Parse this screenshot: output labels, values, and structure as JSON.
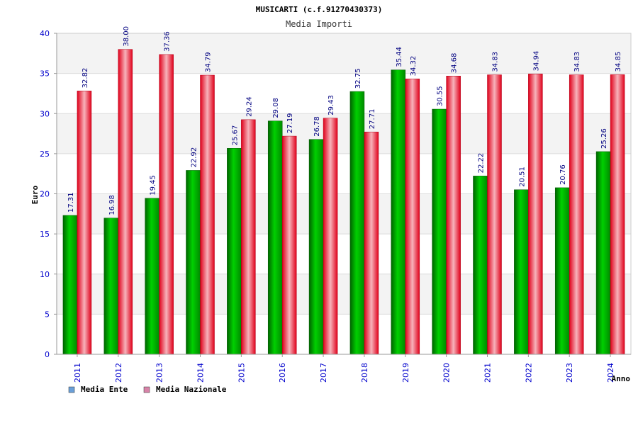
{
  "chart_data": {
    "type": "bar",
    "title": "MUSICARTI (c.f.91270430373)",
    "subtitle": "Media Importi",
    "xlabel": "Anno",
    "ylabel": "Euro",
    "ylim": [
      0,
      40
    ],
    "yticks": [
      "0",
      "5",
      "10",
      "15",
      "20",
      "25",
      "30",
      "35",
      "40"
    ],
    "grid": true,
    "legend_position": "bottom-left",
    "categories": [
      "2011",
      "2012",
      "2013",
      "2014",
      "2015",
      "2016",
      "2017",
      "2018",
      "2019",
      "2020",
      "2021",
      "2022",
      "2023",
      "2024"
    ],
    "series": [
      {
        "name": "Media Ente",
        "legend_color": "#6a9fd8",
        "bar_color": "#00c000",
        "values": [
          17.31,
          16.98,
          19.45,
          22.92,
          25.67,
          29.08,
          26.78,
          32.75,
          35.44,
          30.55,
          22.22,
          20.51,
          20.76,
          25.26
        ],
        "labels": [
          "17.31",
          "16.98",
          "19.45",
          "22.92",
          "25.67",
          "29.08",
          "26.78",
          "32.75",
          "35.44",
          "30.55",
          "22.22",
          "20.51",
          "20.76",
          "25.26"
        ]
      },
      {
        "name": "Media Nazionale",
        "legend_color": "#d783a8",
        "bar_color": "#e81c2c",
        "values": [
          32.82,
          38.0,
          37.36,
          34.79,
          29.24,
          27.19,
          29.43,
          27.71,
          34.32,
          34.68,
          34.83,
          34.94,
          34.83,
          34.85
        ],
        "labels": [
          "32.82",
          "38.00",
          "37.36",
          "34.79",
          "29.24",
          "27.19",
          "29.43",
          "27.71",
          "34.32",
          "34.68",
          "34.83",
          "34.94",
          "34.83",
          "34.85"
        ]
      }
    ]
  }
}
